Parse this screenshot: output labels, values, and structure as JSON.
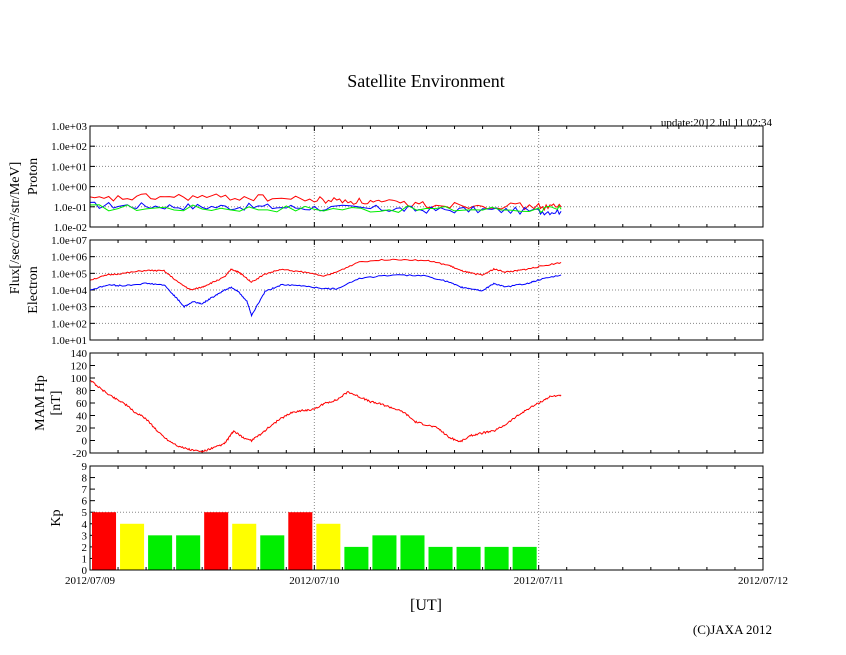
{
  "chart_data": {
    "type": "line",
    "title": "Satellite Environment",
    "update_label": "update:2012 Jul 11 02:34",
    "copyright": "(C)JAXA 2012",
    "xlabel": "[UT]",
    "x_range_days": [
      0,
      3
    ],
    "x_tick_labels": [
      "2012/07/09",
      "2012/07/10",
      "2012/07/11",
      "2012/07/12"
    ],
    "y_group_label": "Flux[/sec/cm²/str/MeV]",
    "panels": [
      {
        "name": "proton",
        "ylabel": "Proton",
        "scale": "log",
        "ylim_exp": [
          -2,
          3
        ],
        "tick_labels": [
          "1.0e-02",
          "1.0e-01",
          "1.0e+00",
          "1.0e+01",
          "1.0e+02",
          "1.0e+03"
        ],
        "series": [
          {
            "name": "proton-high",
            "color": "#ff0000",
            "x": [
              0,
              0.25,
              0.5,
              0.75,
              1.0,
              1.15,
              1.3,
              1.5,
              1.75,
              2.0,
              2.1
            ],
            "y": [
              0.22,
              0.3,
              0.3,
              0.28,
              0.22,
              0.2,
              0.16,
              0.13,
              0.12,
              0.1,
              0.1
            ]
          },
          {
            "name": "proton-mid",
            "color": "#0000ff",
            "x": [
              0,
              0.25,
              0.5,
              0.75,
              1.0,
              1.3,
              1.5,
              1.75,
              2.0,
              2.1
            ],
            "y": [
              0.12,
              0.11,
              0.1,
              0.1,
              0.09,
              0.08,
              0.07,
              0.07,
              0.06,
              0.06
            ]
          },
          {
            "name": "proton-low",
            "color": "#00ee00",
            "x": [
              0,
              0.5,
              1.0,
              1.5,
              2.0,
              2.1
            ],
            "y": [
              0.09,
              0.085,
              0.08,
              0.075,
              0.075,
              0.075
            ]
          }
        ]
      },
      {
        "name": "electron",
        "ylabel": "Electron",
        "scale": "log",
        "ylim_exp": [
          1,
          7
        ],
        "tick_labels": [
          "1.0e+01",
          "1.0e+02",
          "1.0e+03",
          "1.0e+04",
          "1.0e+05",
          "1.0e+06",
          "1.0e+07"
        ],
        "series": [
          {
            "name": "electron-high",
            "color": "#ff0000",
            "x": [
              0,
              0.08,
              0.15,
              0.25,
              0.33,
              0.4,
              0.45,
              0.5,
              0.55,
              0.6,
              0.63,
              0.66,
              0.68,
              0.72,
              0.78,
              0.85,
              0.95,
              1.05,
              1.1,
              1.2,
              1.35,
              1.5,
              1.6,
              1.65,
              1.7,
              1.75,
              1.8,
              1.85,
              1.9,
              1.95,
              2.0,
              2.1
            ],
            "y": [
              40000,
              80000,
              100000,
              150000,
              140000,
              25000,
              10000,
              15000,
              30000,
              60000,
              180000,
              120000,
              80000,
              30000,
              90000,
              170000,
              120000,
              70000,
              120000,
              500000,
              700000,
              600000,
              300000,
              150000,
              100000,
              80000,
              180000,
              120000,
              140000,
              180000,
              250000,
              450000
            ]
          },
          {
            "name": "electron-low",
            "color": "#0000ff",
            "x": [
              0,
              0.08,
              0.15,
              0.25,
              0.33,
              0.38,
              0.42,
              0.46,
              0.5,
              0.55,
              0.6,
              0.63,
              0.66,
              0.7,
              0.72,
              0.78,
              0.85,
              0.95,
              1.05,
              1.1,
              1.2,
              1.35,
              1.5,
              1.6,
              1.65,
              1.7,
              1.75,
              1.8,
              1.85,
              1.95,
              2.0,
              2.1
            ],
            "y": [
              10000,
              20000,
              18000,
              25000,
              20000,
              4000,
              1000,
              2000,
              1500,
              4000,
              10000,
              15000,
              8000,
              2000,
              300,
              8000,
              20000,
              18000,
              12000,
              12000,
              50000,
              80000,
              70000,
              30000,
              15000,
              12000,
              9000,
              25000,
              15000,
              25000,
              40000,
              80000
            ]
          }
        ]
      },
      {
        "name": "mam-hp",
        "ylabel": "MAM Hp",
        "ylabel2": "[nT]",
        "scale": "linear",
        "ylim": [
          -20,
          140
        ],
        "tick_labels": [
          "-20",
          "0",
          "20",
          "40",
          "60",
          "80",
          "100",
          "120",
          "140"
        ],
        "series": [
          {
            "name": "mam-hp",
            "color": "#ff0000",
            "x": [
              0,
              0.05,
              0.1,
              0.15,
              0.2,
              0.25,
              0.3,
              0.35,
              0.4,
              0.45,
              0.5,
              0.55,
              0.6,
              0.62,
              0.64,
              0.68,
              0.72,
              0.76,
              0.8,
              0.85,
              0.9,
              0.95,
              1.0,
              1.05,
              1.1,
              1.15,
              1.2,
              1.25,
              1.3,
              1.35,
              1.4,
              1.45,
              1.5,
              1.55,
              1.6,
              1.65,
              1.7,
              1.75,
              1.8,
              1.85,
              1.9,
              1.95,
              2.0,
              2.05,
              2.1
            ],
            "y": [
              97,
              82,
              70,
              60,
              45,
              35,
              15,
              0,
              -10,
              -15,
              -18,
              -12,
              -5,
              5,
              15,
              5,
              0,
              10,
              22,
              35,
              45,
              48,
              50,
              60,
              65,
              78,
              70,
              62,
              58,
              52,
              45,
              30,
              25,
              20,
              5,
              -2,
              8,
              12,
              15,
              25,
              38,
              50,
              60,
              70,
              73
            ]
          }
        ]
      },
      {
        "name": "kp",
        "ylabel": "Kp",
        "scale": "linear",
        "ylim": [
          0,
          9
        ],
        "tick_labels": [
          "0",
          "1",
          "2",
          "3",
          "4",
          "5",
          "6",
          "7",
          "8",
          "9"
        ],
        "series": [
          {
            "name": "kp",
            "type": "bar",
            "bar_width_days": 0.125,
            "values": [
              5,
              4,
              3,
              3,
              5,
              4,
              3,
              5,
              4,
              2,
              3,
              3,
              2,
              2,
              2,
              2
            ],
            "colors": [
              "#ff0000",
              "#ffff00",
              "#00ee00",
              "#00ee00",
              "#ff0000",
              "#ffff00",
              "#00ee00",
              "#ff0000",
              "#ffff00",
              "#00ee00",
              "#00ee00",
              "#00ee00",
              "#00ee00",
              "#00ee00",
              "#00ee00",
              "#00ee00"
            ]
          }
        ]
      }
    ]
  }
}
